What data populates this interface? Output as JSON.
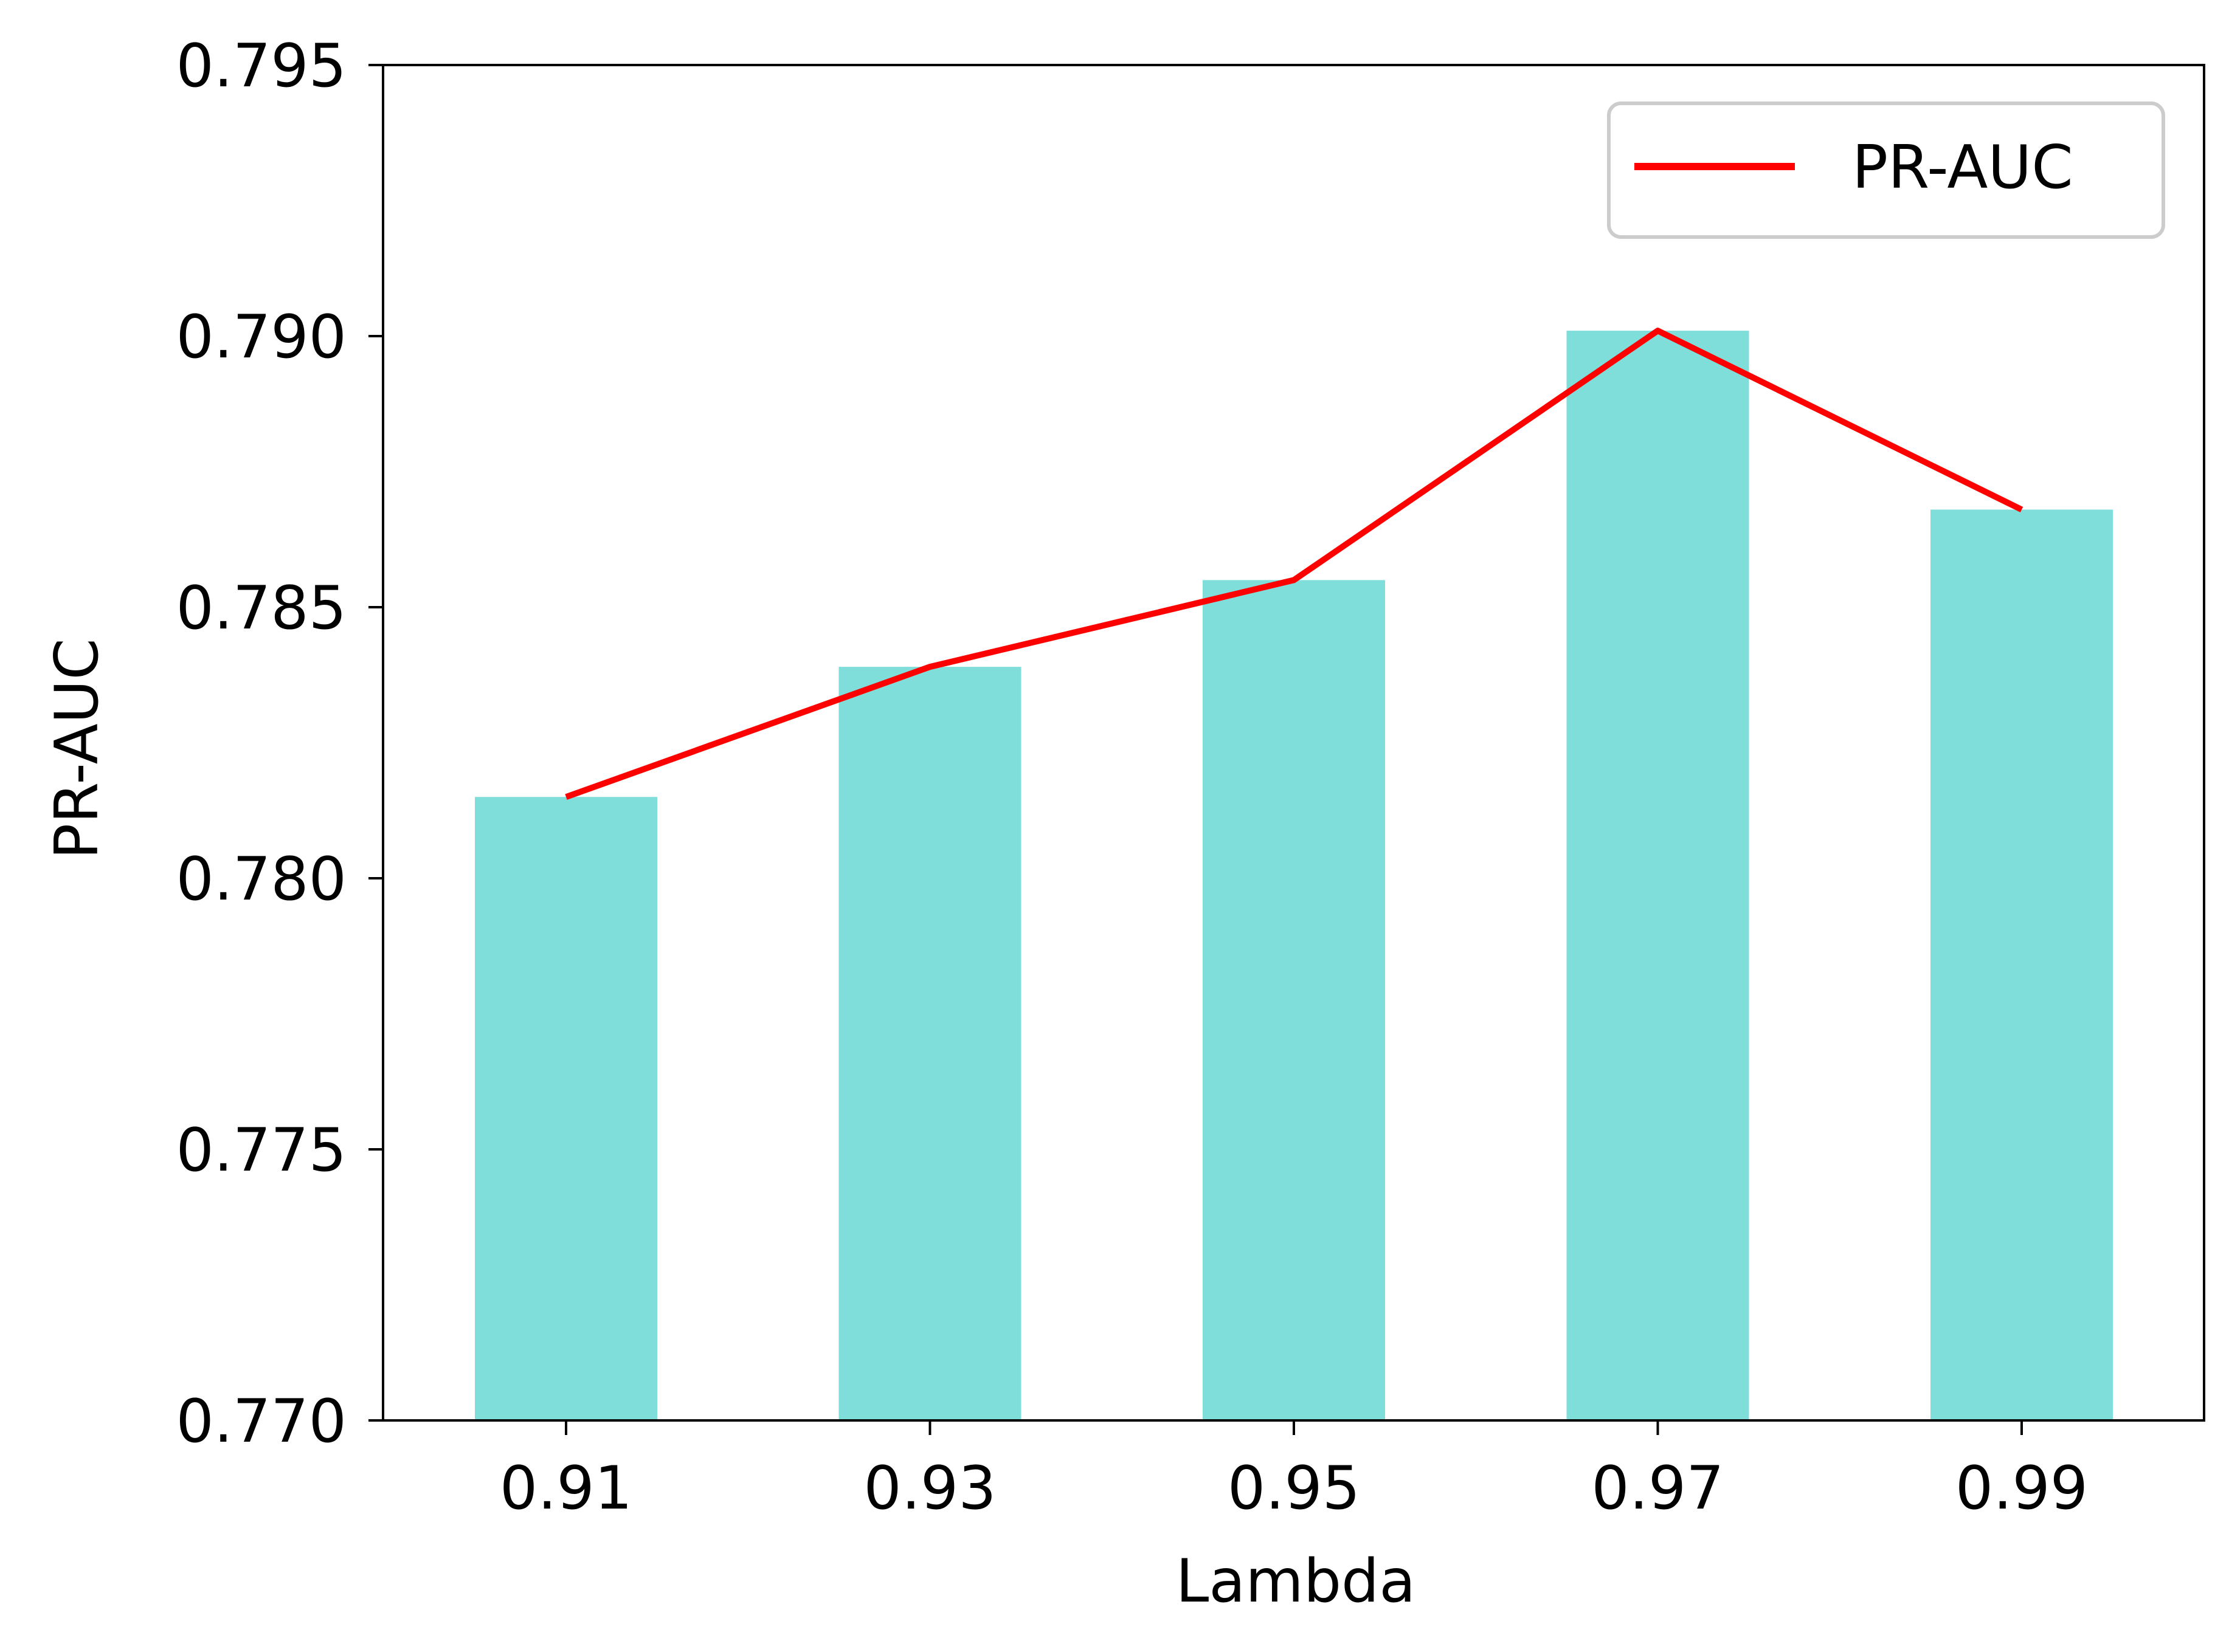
{
  "chart_data": {
    "type": "bar",
    "categories": [
      "0.91",
      "0.93",
      "0.95",
      "0.97",
      "0.99"
    ],
    "values": [
      0.7815,
      0.7839,
      0.7855,
      0.7901,
      0.7868
    ],
    "series": [
      {
        "name": "PR-AUC",
        "kind": "line",
        "values": [
          0.7815,
          0.7839,
          0.7855,
          0.7901,
          0.7868
        ]
      }
    ],
    "xlabel": "Lambda",
    "ylabel": "PR-AUC",
    "ylim": [
      0.77,
      0.795
    ],
    "yticks": [
      "0.770",
      "0.775",
      "0.780",
      "0.785",
      "0.790",
      "0.795"
    ],
    "legend": {
      "labels": [
        "PR-AUC"
      ],
      "placement": "top-right"
    },
    "grid": false,
    "colors": {
      "bars": "#80deda",
      "line": "#ff0000",
      "axes": "#000000"
    }
  }
}
